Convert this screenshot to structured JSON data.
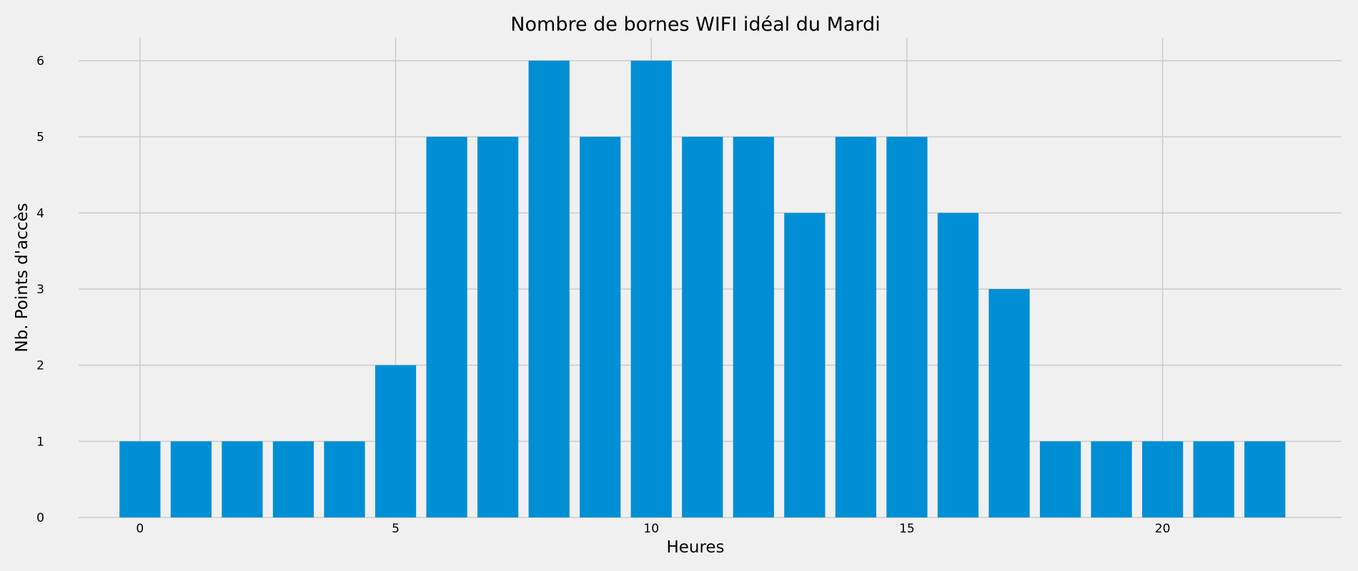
{
  "chart_data": {
    "type": "bar",
    "title": "Nombre de bornes WIFI idéal du Mardi",
    "xlabel": "Heures",
    "ylabel": "Nb. Points d'accès",
    "x": [
      0,
      1,
      2,
      3,
      4,
      5,
      6,
      7,
      8,
      9,
      10,
      11,
      12,
      13,
      14,
      15,
      16,
      17,
      18,
      19,
      20,
      21,
      22
    ],
    "values": [
      1,
      1,
      1,
      1,
      1,
      2,
      5,
      5,
      6,
      5,
      6,
      5,
      5,
      4,
      5,
      5,
      4,
      3,
      1,
      1,
      1,
      1,
      1
    ],
    "xlim": [
      -1.2,
      23.5
    ],
    "ylim": [
      0,
      6.3
    ],
    "xticks": [
      0,
      5,
      10,
      15,
      20
    ],
    "yticks": [
      0,
      1,
      2,
      3,
      4,
      5,
      6
    ],
    "grid": true,
    "bar_color": "#008fd5",
    "background_color": "#f0f0f0",
    "grid_color": "#cbcbcb"
  }
}
